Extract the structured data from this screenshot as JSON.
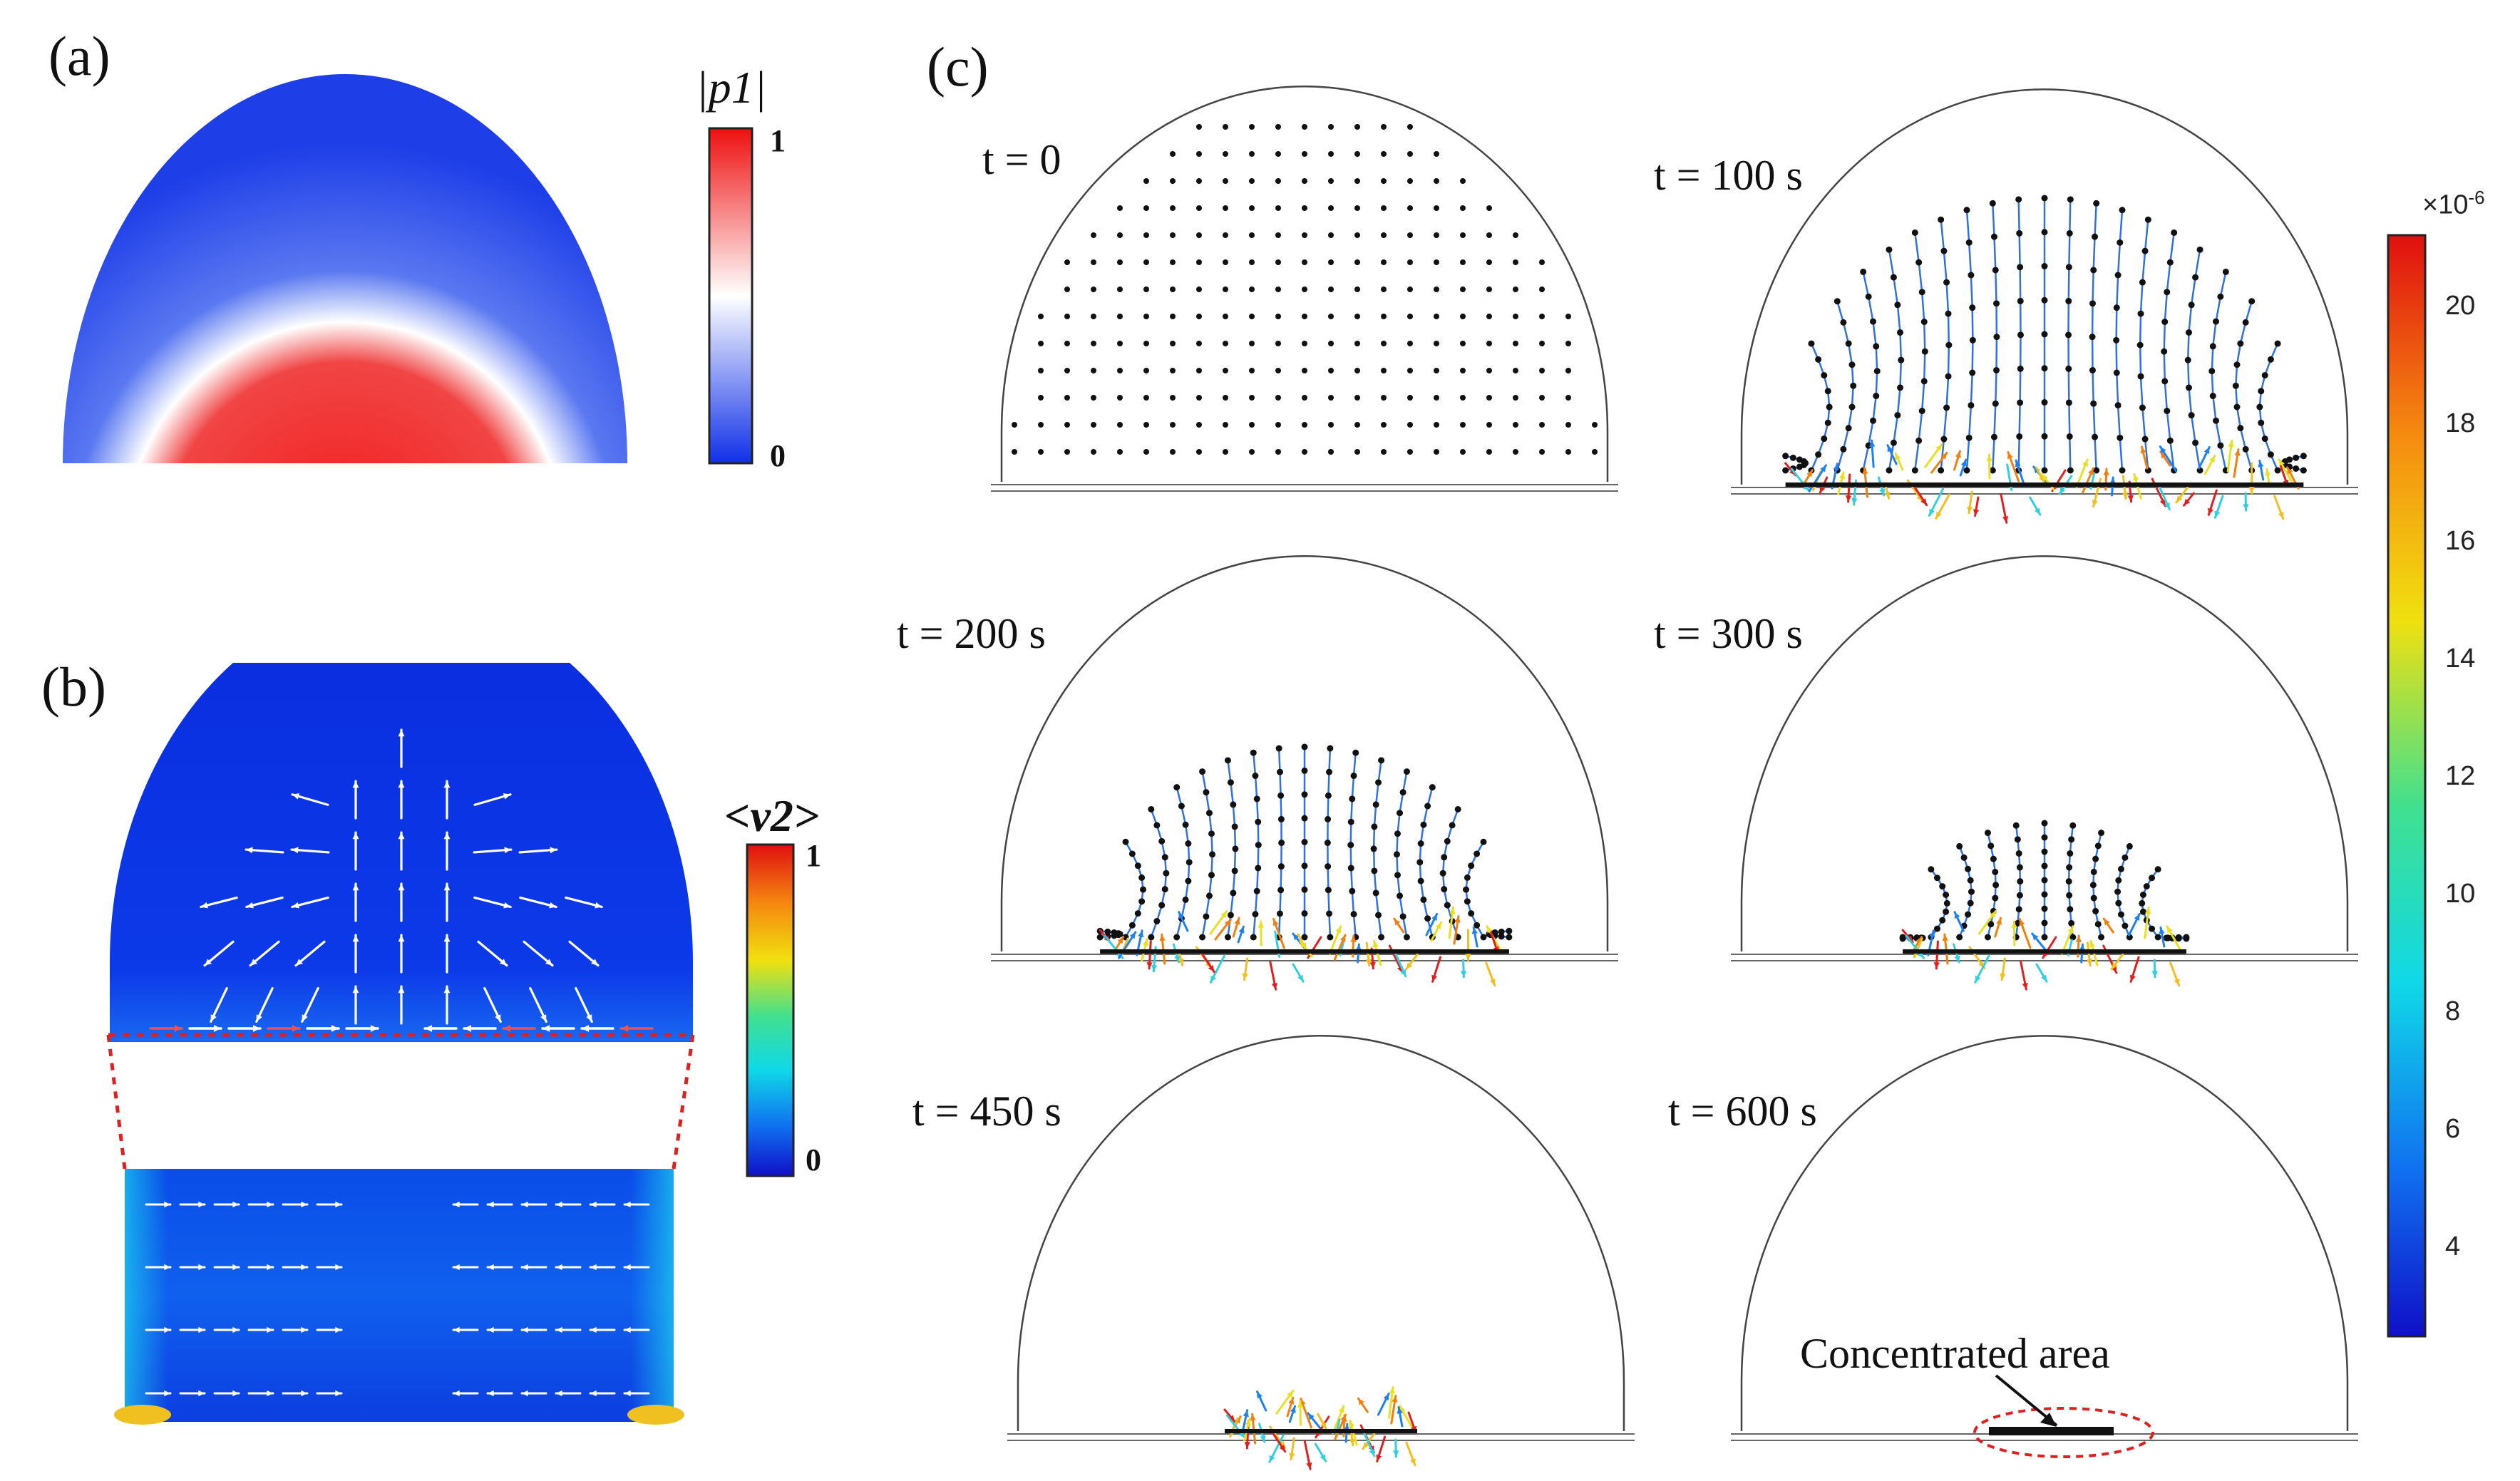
{
  "panels": {
    "a": {
      "label": "(a)",
      "colorbar": {
        "title": "|p1|",
        "max": "1",
        "min": "0"
      }
    },
    "b": {
      "label": "(b)",
      "colorbar": {
        "title": "<v2>",
        "max": "1",
        "min": "0"
      }
    },
    "c": {
      "label": "(c)",
      "snapshots": [
        {
          "time": "t = 0"
        },
        {
          "time": "t = 100 s"
        },
        {
          "time": "t = 200 s"
        },
        {
          "time": "t = 300 s"
        },
        {
          "time": "t = 450 s"
        },
        {
          "time": "t = 600 s"
        }
      ],
      "colorbar": {
        "exponent": "×10",
        "exponent_power": "-6",
        "ticks": [
          "20",
          "18",
          "16",
          "14",
          "12",
          "10",
          "8",
          "6",
          "4"
        ]
      },
      "annotation": "Concentrated area"
    }
  }
}
